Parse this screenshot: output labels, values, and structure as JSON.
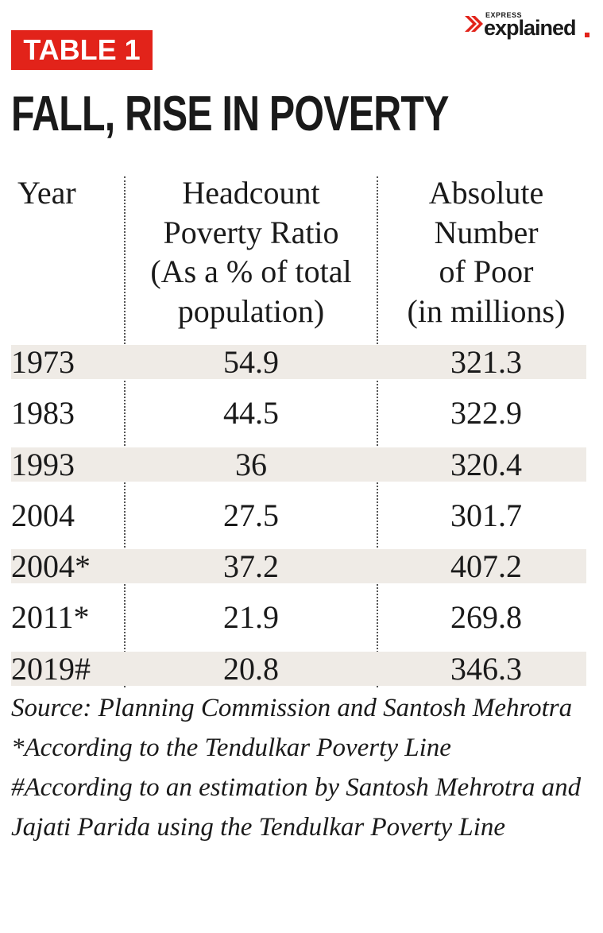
{
  "logo": {
    "small": "EXPRESS",
    "large": "explained"
  },
  "header": {
    "label": "TABLE 1",
    "title": "FALL, RISE IN POVERTY"
  },
  "table": {
    "columns": [
      [
        "Year"
      ],
      [
        "Headcount",
        "Poverty Ratio",
        "(As a % of total",
        "population)"
      ],
      [
        "Absolute",
        "Number",
        "of Poor",
        "(in millions)"
      ]
    ],
    "rows": [
      [
        "1973",
        "54.9",
        "321.3"
      ],
      [
        "1983",
        "44.5",
        "322.9"
      ],
      [
        "1993",
        "36",
        "320.4"
      ],
      [
        "2004",
        "27.5",
        "301.7"
      ],
      [
        "2004*",
        "37.2",
        "407.2"
      ],
      [
        "2011*",
        "21.9",
        "269.8"
      ],
      [
        "2019#",
        "20.8",
        "346.3"
      ]
    ]
  },
  "notes": [
    "Source: Planning Commission and Santosh Mehrotra",
    "*According to the Tendulkar Poverty Line",
    "#According to an estimation by Santosh Mehrotra and Jajati Parida using the Tendulkar Poverty Line"
  ]
}
